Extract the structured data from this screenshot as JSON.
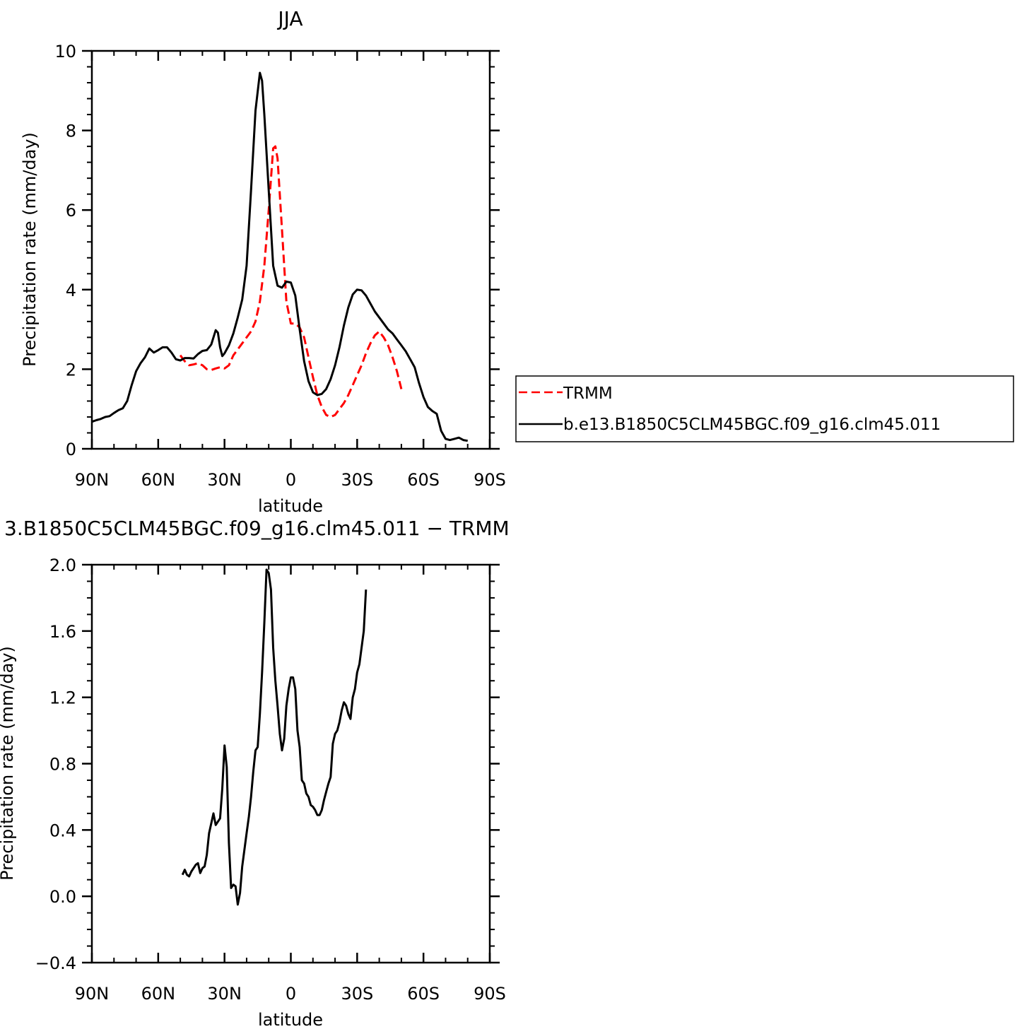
{
  "chart_data": [
    {
      "type": "line",
      "title": "JJA",
      "xlabel": "latitude",
      "ylabel": "Precipitation rate (mm/day)",
      "x_ticks": [
        -90,
        -60,
        -30,
        0,
        30,
        60,
        90
      ],
      "x_tick_labels": [
        "90N",
        "60N",
        "30N",
        "0",
        "30S",
        "60S",
        "90S"
      ],
      "xlim": [
        -90,
        90
      ],
      "ylim": [
        0,
        10
      ],
      "y_ticks": [
        0,
        2,
        4,
        6,
        8,
        10
      ],
      "y_tick_labels": [
        "0",
        "2",
        "4",
        "6",
        "8",
        "10"
      ],
      "legend_position": "right",
      "series": [
        {
          "name": "TRMM",
          "color": "#ff0000",
          "dash": "dashed",
          "points": [
            [
              -50,
              2.35
            ],
            [
              -48,
              2.2
            ],
            [
              -46,
              2.1
            ],
            [
              -44,
              2.12
            ],
            [
              -42,
              2.15
            ],
            [
              -40,
              2.1
            ],
            [
              -38,
              2.0
            ],
            [
              -36,
              1.98
            ],
            [
              -34,
              2.02
            ],
            [
              -32,
              2.05
            ],
            [
              -30,
              2.02
            ],
            [
              -28,
              2.1
            ],
            [
              -26,
              2.35
            ],
            [
              -24,
              2.5
            ],
            [
              -22,
              2.65
            ],
            [
              -20,
              2.8
            ],
            [
              -18,
              2.95
            ],
            [
              -16,
              3.2
            ],
            [
              -14,
              3.7
            ],
            [
              -12,
              4.6
            ],
            [
              -10,
              6.0
            ],
            [
              -8,
              7.55
            ],
            [
              -7,
              7.6
            ],
            [
              -6,
              7.3
            ],
            [
              -4,
              5.5
            ],
            [
              -2,
              3.7
            ],
            [
              0,
              3.15
            ],
            [
              2,
              3.15
            ],
            [
              4,
              3.05
            ],
            [
              6,
              2.8
            ],
            [
              8,
              2.3
            ],
            [
              10,
              1.8
            ],
            [
              12,
              1.35
            ],
            [
              14,
              1.05
            ],
            [
              16,
              0.85
            ],
            [
              18,
              0.8
            ],
            [
              20,
              0.85
            ],
            [
              22,
              1.0
            ],
            [
              24,
              1.15
            ],
            [
              26,
              1.35
            ],
            [
              28,
              1.6
            ],
            [
              30,
              1.85
            ],
            [
              32,
              2.1
            ],
            [
              34,
              2.4
            ],
            [
              36,
              2.65
            ],
            [
              38,
              2.85
            ],
            [
              40,
              2.95
            ],
            [
              42,
              2.8
            ],
            [
              44,
              2.6
            ],
            [
              46,
              2.3
            ],
            [
              48,
              1.95
            ],
            [
              50,
              1.5
            ]
          ]
        },
        {
          "name": "b.e13.B1850C5CLM45BGC.f09_g16.clm45.011",
          "color": "#000000",
          "dash": "solid",
          "points": [
            [
              -90,
              0.68
            ],
            [
              -88,
              0.72
            ],
            [
              -86,
              0.75
            ],
            [
              -84,
              0.8
            ],
            [
              -82,
              0.82
            ],
            [
              -80,
              0.9
            ],
            [
              -78,
              0.97
            ],
            [
              -76,
              1.02
            ],
            [
              -74,
              1.2
            ],
            [
              -72,
              1.6
            ],
            [
              -70,
              1.95
            ],
            [
              -68,
              2.15
            ],
            [
              -66,
              2.3
            ],
            [
              -64,
              2.52
            ],
            [
              -62,
              2.42
            ],
            [
              -60,
              2.48
            ],
            [
              -58,
              2.55
            ],
            [
              -56,
              2.55
            ],
            [
              -54,
              2.42
            ],
            [
              -52,
              2.25
            ],
            [
              -50,
              2.22
            ],
            [
              -48,
              2.28
            ],
            [
              -46,
              2.28
            ],
            [
              -44,
              2.27
            ],
            [
              -42,
              2.38
            ],
            [
              -40,
              2.46
            ],
            [
              -38,
              2.48
            ],
            [
              -36,
              2.62
            ],
            [
              -34,
              2.98
            ],
            [
              -33,
              2.92
            ],
            [
              -32,
              2.55
            ],
            [
              -31,
              2.33
            ],
            [
              -30,
              2.4
            ],
            [
              -28,
              2.6
            ],
            [
              -26,
              2.9
            ],
            [
              -24,
              3.3
            ],
            [
              -22,
              3.75
            ],
            [
              -20,
              4.6
            ],
            [
              -18,
              6.5
            ],
            [
              -16,
              8.5
            ],
            [
              -14,
              9.45
            ],
            [
              -13,
              9.25
            ],
            [
              -12,
              8.4
            ],
            [
              -10,
              6.5
            ],
            [
              -8,
              4.6
            ],
            [
              -6,
              4.1
            ],
            [
              -4,
              4.05
            ],
            [
              -2,
              4.2
            ],
            [
              0,
              4.18
            ],
            [
              2,
              3.85
            ],
            [
              4,
              3.0
            ],
            [
              6,
              2.2
            ],
            [
              8,
              1.7
            ],
            [
              10,
              1.42
            ],
            [
              12,
              1.35
            ],
            [
              14,
              1.38
            ],
            [
              16,
              1.5
            ],
            [
              18,
              1.75
            ],
            [
              20,
              2.1
            ],
            [
              22,
              2.55
            ],
            [
              24,
              3.1
            ],
            [
              26,
              3.55
            ],
            [
              28,
              3.88
            ],
            [
              30,
              4.0
            ],
            [
              32,
              3.98
            ],
            [
              34,
              3.85
            ],
            [
              36,
              3.65
            ],
            [
              38,
              3.45
            ],
            [
              40,
              3.3
            ],
            [
              42,
              3.15
            ],
            [
              44,
              3.0
            ],
            [
              46,
              2.9
            ],
            [
              48,
              2.75
            ],
            [
              50,
              2.6
            ],
            [
              52,
              2.45
            ],
            [
              54,
              2.25
            ],
            [
              56,
              2.05
            ],
            [
              58,
              1.65
            ],
            [
              60,
              1.3
            ],
            [
              62,
              1.05
            ],
            [
              64,
              0.95
            ],
            [
              66,
              0.88
            ],
            [
              68,
              0.45
            ],
            [
              70,
              0.25
            ],
            [
              72,
              0.22
            ],
            [
              74,
              0.25
            ],
            [
              76,
              0.28
            ],
            [
              78,
              0.22
            ],
            [
              80,
              0.2
            ]
          ]
        }
      ]
    },
    {
      "type": "line",
      "title": "3.B1850C5CLM45BGC.f09_g16.clm45.011 − TRMM",
      "xlabel": "latitude",
      "ylabel": "Precipitation rate (mm/day)",
      "x_ticks": [
        -90,
        -60,
        -30,
        0,
        30,
        60,
        90
      ],
      "x_tick_labels": [
        "90N",
        "60N",
        "30N",
        "0",
        "30S",
        "60S",
        "90S"
      ],
      "xlim": [
        -90,
        90
      ],
      "ylim": [
        -0.4,
        2.0
      ],
      "y_ticks": [
        -0.4,
        0.0,
        0.4,
        0.8,
        1.2,
        1.6,
        2.0
      ],
      "y_tick_labels": [
        "−0.4",
        "0.0",
        "0.4",
        "0.8",
        "1.2",
        "1.6",
        "2.0"
      ],
      "series": [
        {
          "color": "#000000",
          "dash": "solid",
          "points": [
            [
              -49,
              0.13
            ],
            [
              -48,
              0.16
            ],
            [
              -47,
              0.13
            ],
            [
              -46,
              0.12
            ],
            [
              -45,
              0.15
            ],
            [
              -44,
              0.17
            ],
            [
              -43,
              0.19
            ],
            [
              -42,
              0.2
            ],
            [
              -41,
              0.14
            ],
            [
              -40,
              0.17
            ],
            [
              -39,
              0.18
            ],
            [
              -38,
              0.25
            ],
            [
              -37,
              0.38
            ],
            [
              -36,
              0.44
            ],
            [
              -35,
              0.5
            ],
            [
              -34,
              0.43
            ],
            [
              -33,
              0.45
            ],
            [
              -32,
              0.47
            ],
            [
              -31,
              0.65
            ],
            [
              -30,
              0.91
            ],
            [
              -29,
              0.78
            ],
            [
              -28,
              0.32
            ],
            [
              -27,
              0.05
            ],
            [
              -26,
              0.07
            ],
            [
              -25,
              0.06
            ],
            [
              -24,
              -0.05
            ],
            [
              -23,
              0.02
            ],
            [
              -22,
              0.18
            ],
            [
              -21,
              0.28
            ],
            [
              -20,
              0.38
            ],
            [
              -19,
              0.48
            ],
            [
              -18,
              0.6
            ],
            [
              -17,
              0.75
            ],
            [
              -16,
              0.88
            ],
            [
              -15,
              0.9
            ],
            [
              -14,
              1.1
            ],
            [
              -13,
              1.35
            ],
            [
              -12,
              1.65
            ],
            [
              -11,
              1.97
            ],
            [
              -10,
              1.95
            ],
            [
              -9,
              1.85
            ],
            [
              -8,
              1.5
            ],
            [
              -7,
              1.3
            ],
            [
              -6,
              1.15
            ],
            [
              -5,
              0.98
            ],
            [
              -4,
              0.88
            ],
            [
              -3,
              0.95
            ],
            [
              -2,
              1.15
            ],
            [
              -1,
              1.25
            ],
            [
              0,
              1.32
            ],
            [
              1,
              1.32
            ],
            [
              2,
              1.25
            ],
            [
              3,
              1.0
            ],
            [
              4,
              0.9
            ],
            [
              5,
              0.7
            ],
            [
              6,
              0.68
            ],
            [
              7,
              0.62
            ],
            [
              8,
              0.6
            ],
            [
              9,
              0.55
            ],
            [
              10,
              0.54
            ],
            [
              11,
              0.52
            ],
            [
              12,
              0.49
            ],
            [
              13,
              0.49
            ],
            [
              14,
              0.52
            ],
            [
              15,
              0.58
            ],
            [
              16,
              0.63
            ],
            [
              17,
              0.68
            ],
            [
              18,
              0.72
            ],
            [
              19,
              0.92
            ],
            [
              20,
              0.98
            ],
            [
              21,
              1.0
            ],
            [
              22,
              1.05
            ],
            [
              23,
              1.12
            ],
            [
              24,
              1.17
            ],
            [
              25,
              1.15
            ],
            [
              26,
              1.1
            ],
            [
              27,
              1.07
            ],
            [
              28,
              1.2
            ],
            [
              29,
              1.25
            ],
            [
              30,
              1.35
            ],
            [
              31,
              1.4
            ],
            [
              32,
              1.5
            ],
            [
              33,
              1.6
            ],
            [
              34,
              1.85
            ]
          ]
        }
      ]
    }
  ]
}
